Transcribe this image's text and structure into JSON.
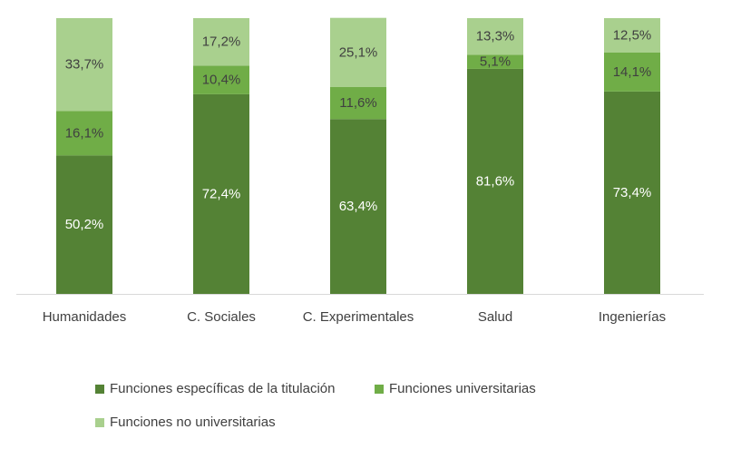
{
  "chart_data": {
    "type": "bar",
    "stacked": true,
    "categories": [
      "Humanidades",
      "C. Sociales",
      "C. Experimentales",
      "Salud",
      "Ingenierías"
    ],
    "series": [
      {
        "name": "Funciones específicas de la titulación",
        "color": "#548235",
        "label_color": "#ffffff",
        "values": [
          50.2,
          72.4,
          63.4,
          81.6,
          73.4
        ]
      },
      {
        "name": "Funciones universitarias",
        "color": "#70ad47",
        "label_color": "#404040",
        "values": [
          16.1,
          10.4,
          11.6,
          5.1,
          14.1
        ]
      },
      {
        "name": "Funciones no universitarias",
        "color": "#a9d08e",
        "label_color": "#404040",
        "values": [
          33.7,
          17.2,
          25.1,
          13.3,
          12.5
        ]
      }
    ],
    "ylim": [
      0,
      100
    ],
    "value_suffix": "%",
    "decimal_separator": ",",
    "legend_position": "bottom",
    "grid": false
  }
}
